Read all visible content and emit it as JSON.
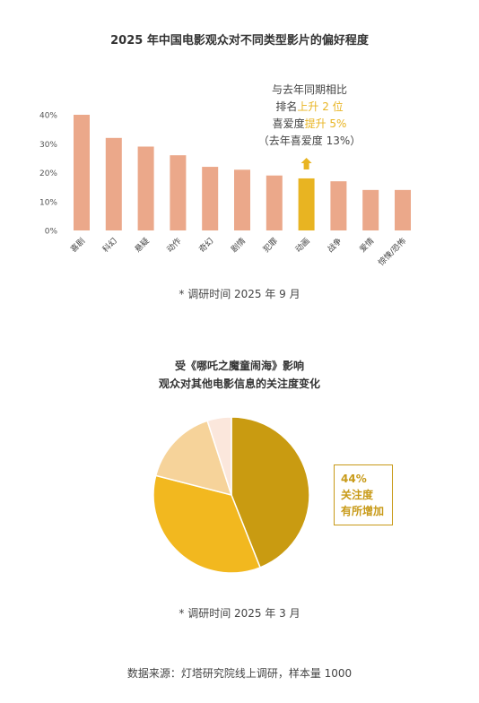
{
  "bar_chart": {
    "title": "2025 年中国电影观众对不同类型影片的偏好程度",
    "annotation": {
      "line1": "与去年同期相比",
      "line2_prefix": "排名",
      "line2_highlight": "上升 2 位",
      "line3_prefix": "喜爱度",
      "line3_highlight": "提升 5%",
      "line4": "（去年喜爱度 13%）"
    },
    "note": "* 调研时间 2025 年 9 月"
  },
  "pie_chart": {
    "title_line1": "受《哪吒之魔童闹海》影响",
    "title_line2": "观众对其他电影信息的关注度变化",
    "callout": {
      "line1": "44%",
      "line2": "关注度",
      "line3": "有所增加"
    },
    "note": "* 调研时间 2025 年 3 月"
  },
  "source": "数据来源：灯塔研究院线上调研，样本量 1000",
  "colors": {
    "bar": "#eba88a",
    "bar_highlight": "#e8b422",
    "arrow": "#e8b422",
    "pie_1": "#c99b11",
    "pie_2": "#f2b81f",
    "pie_3": "#f6d39a",
    "pie_4": "#fbe7dc"
  },
  "chart_data": [
    {
      "type": "bar",
      "categories": [
        "喜剧",
        "科幻",
        "悬疑",
        "动作",
        "奇幻",
        "剧情",
        "犯罪",
        "动画",
        "战争",
        "爱情",
        "惊悚/恐怖"
      ],
      "values": [
        40,
        32,
        29,
        26,
        22,
        21,
        19,
        18,
        17,
        14,
        14
      ],
      "highlight_category": "动画",
      "yticks": [
        "0%",
        "10%",
        "20%",
        "30%",
        "40%"
      ],
      "ylim": [
        0,
        40
      ],
      "grid": false,
      "title": "2025 年中国电影观众对不同类型影片的偏好程度"
    },
    {
      "type": "pie",
      "values": [
        44,
        35,
        16,
        5
      ],
      "labels": [
        "关注度有所增加",
        "",
        "",
        ""
      ],
      "start": "top",
      "direction": "clockwise"
    }
  ]
}
